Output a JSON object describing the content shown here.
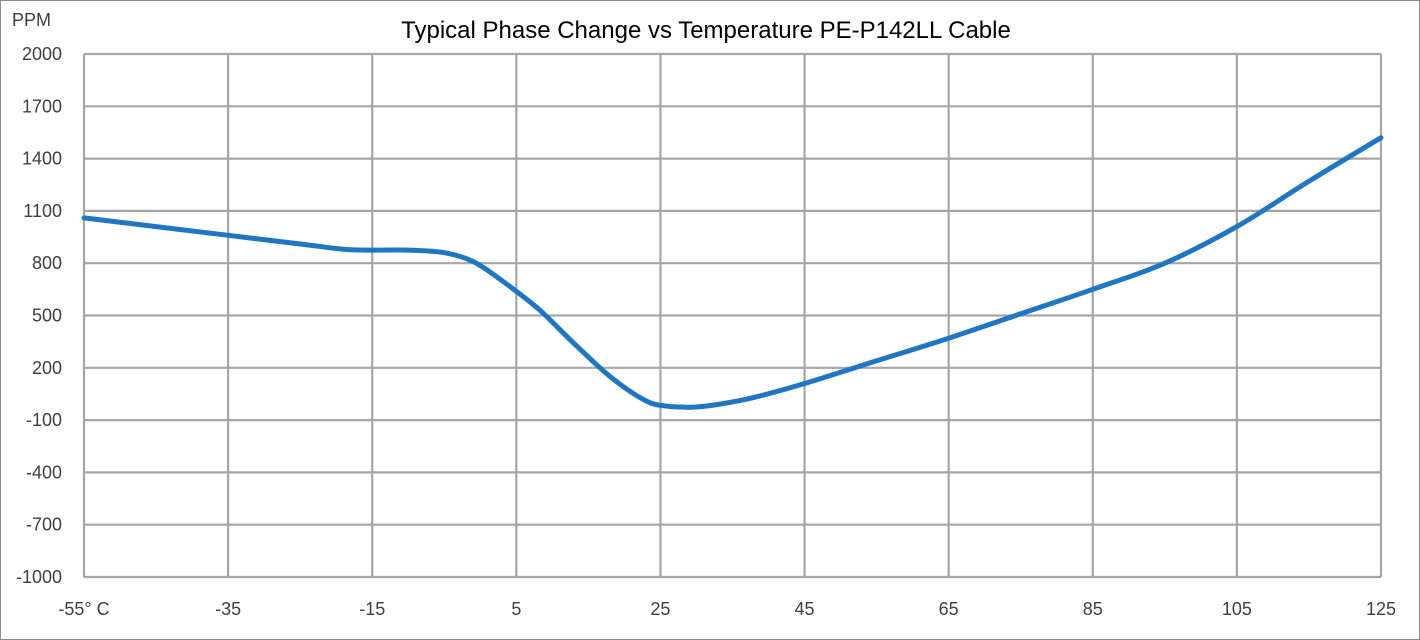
{
  "chart_data": {
    "type": "line",
    "title": "Typical Phase Change vs Temperature PE-P142LL Cable",
    "ylabel": "PPM",
    "xlabel": "",
    "x_tick_labels": [
      "-55° C",
      "-35",
      "-15",
      "5",
      "25",
      "45",
      "65",
      "85",
      "105",
      "125"
    ],
    "y_tick_labels": [
      "2000",
      "1700",
      "1400",
      "1100",
      "800",
      "500",
      "200",
      "-100",
      "-400",
      "-700",
      "-1000"
    ],
    "xlim": [
      -55,
      125
    ],
    "ylim": [
      -1000,
      2000
    ],
    "grid": true,
    "line_color": "#1f77c4",
    "grid_color": "#a6a6a6",
    "series": [
      {
        "x": [
          -55,
          -45,
          -35,
          -25,
          -19,
          -15,
          -10,
          -5,
          -1,
          3,
          8,
          13,
          18,
          23,
          26,
          28,
          30,
          33,
          38,
          45,
          55,
          65,
          75,
          85,
          95,
          105,
          115,
          125
        ],
        "y": [
          1060,
          1010,
          960,
          910,
          880,
          875,
          875,
          860,
          810,
          700,
          540,
          340,
          150,
          10,
          -20,
          -25,
          -25,
          -10,
          30,
          110,
          240,
          370,
          510,
          650,
          800,
          1010,
          1270,
          1520
        ]
      }
    ]
  }
}
